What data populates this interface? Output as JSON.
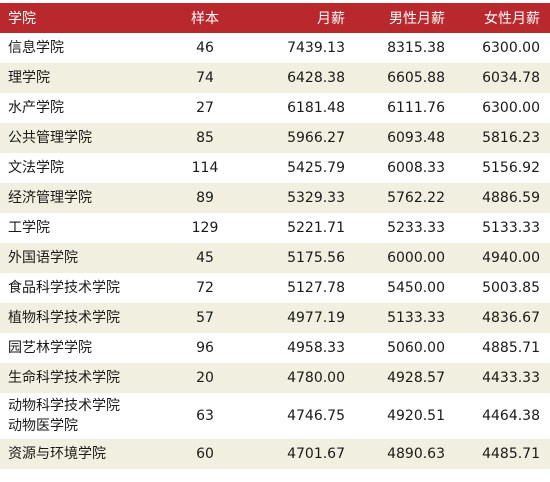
{
  "headers": [
    "学院",
    "样本",
    "月薪",
    "男性月薪",
    "女性月薪"
  ],
  "rows": [
    {
      "college": "信息学院",
      "college_line2": "",
      "sample": "46",
      "salary": "7439.13",
      "male": "8315.38",
      "female": "6300.00"
    },
    {
      "college": "理学院",
      "college_line2": "",
      "sample": "74",
      "salary": "6428.38",
      "male": "6605.88",
      "female": "6034.78"
    },
    {
      "college": "水产学院",
      "college_line2": "",
      "sample": "27",
      "salary": "6181.48",
      "male": "6111.76",
      "female": "6300.00"
    },
    {
      "college": "公共管理学院",
      "college_line2": "",
      "sample": "85",
      "salary": "5966.27",
      "male": "6093.48",
      "female": "5816.23"
    },
    {
      "college": "文法学院",
      "college_line2": "",
      "sample": "114",
      "salary": "5425.79",
      "male": "6008.33",
      "female": "5156.92"
    },
    {
      "college": "经济管理学院",
      "college_line2": "",
      "sample": "89",
      "salary": "5329.33",
      "male": "5762.22",
      "female": "4886.59"
    },
    {
      "college": "工学院",
      "college_line2": "",
      "sample": "129",
      "salary": "5221.71",
      "male": "5233.33",
      "female": "5133.33"
    },
    {
      "college": "外国语学院",
      "college_line2": "",
      "sample": "45",
      "salary": "5175.56",
      "male": "6000.00",
      "female": "4940.00"
    },
    {
      "college": "食品科学技术学院",
      "college_line2": "",
      "sample": "72",
      "salary": "5127.78",
      "male": "5450.00",
      "female": "5003.85"
    },
    {
      "college": "植物科学技术学院",
      "college_line2": "",
      "sample": "57",
      "salary": "4977.19",
      "male": "5133.33",
      "female": "4836.67"
    },
    {
      "college": "园艺林学学院",
      "college_line2": "",
      "sample": "96",
      "salary": "4958.33",
      "male": "5060.00",
      "female": "4885.71"
    },
    {
      "college": "生命科学技术学院",
      "college_line2": "",
      "sample": "20",
      "salary": "4780.00",
      "male": "4928.57",
      "female": "4433.33"
    },
    {
      "college": "动物科学技术学院",
      "college_line2": "动物医学院",
      "sample": "63",
      "salary": "4746.75",
      "male": "4920.51",
      "female": "4464.38"
    },
    {
      "college": "资源与环境学院",
      "college_line2": "",
      "sample": "60",
      "salary": "4701.67",
      "male": "4890.63",
      "female": "4485.71"
    }
  ]
}
